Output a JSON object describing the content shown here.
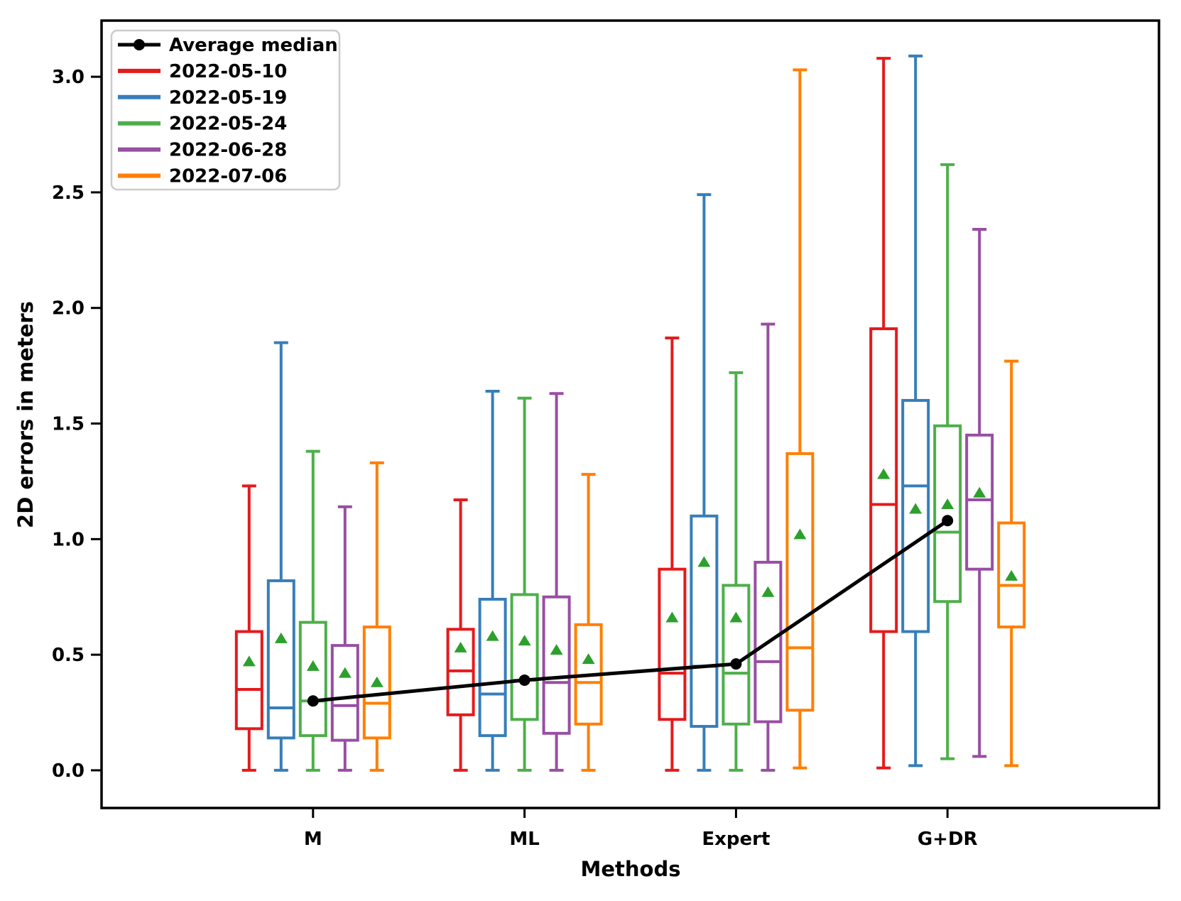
{
  "figure": {
    "background": "#ffffff",
    "plot_border_color": "#000000"
  },
  "chart_data": {
    "type": "boxplot",
    "title": "",
    "xlabel": "Methods",
    "ylabel": "2D errors in meters",
    "categories": [
      "M",
      "ML",
      "Expert",
      "G+DR"
    ],
    "y_ticks": [
      0.0,
      0.5,
      1.0,
      1.5,
      2.0,
      2.5,
      3.0
    ],
    "y_tick_labels": [
      "0.0",
      "0.5",
      "1.0",
      "1.5",
      "2.0",
      "2.5",
      "3.0"
    ],
    "ylim": [
      -0.163,
      3.243
    ],
    "grid": false,
    "legend_position": "upper-left",
    "mean_marker": {
      "shape": "triangle-up",
      "color": "#2ca02c"
    },
    "average_median": {
      "label": "Average median",
      "color": "#000000",
      "values": [
        0.3,
        0.39,
        0.46,
        1.08
      ]
    },
    "series": [
      {
        "name": "2022-05-10",
        "color": "#e41a1c",
        "boxes": [
          {
            "whislo": 0.0,
            "q1": 0.18,
            "med": 0.35,
            "q3": 0.6,
            "whishi": 1.23,
            "mean": 0.47
          },
          {
            "whislo": 0.0,
            "q1": 0.24,
            "med": 0.43,
            "q3": 0.61,
            "whishi": 1.17,
            "mean": 0.53
          },
          {
            "whislo": 0.0,
            "q1": 0.22,
            "med": 0.42,
            "q3": 0.87,
            "whishi": 1.87,
            "mean": 0.66
          },
          {
            "whislo": 0.01,
            "q1": 0.6,
            "med": 1.15,
            "q3": 1.91,
            "whishi": 3.08,
            "mean": 1.28
          }
        ]
      },
      {
        "name": "2022-05-19",
        "color": "#377eb8",
        "boxes": [
          {
            "whislo": 0.0,
            "q1": 0.14,
            "med": 0.27,
            "q3": 0.82,
            "whishi": 1.85,
            "mean": 0.57
          },
          {
            "whislo": 0.0,
            "q1": 0.15,
            "med": 0.33,
            "q3": 0.74,
            "whishi": 1.64,
            "mean": 0.58
          },
          {
            "whislo": 0.0,
            "q1": 0.19,
            "med": 0.45,
            "q3": 1.1,
            "whishi": 2.49,
            "mean": 0.9
          },
          {
            "whislo": 0.02,
            "q1": 0.6,
            "med": 1.23,
            "q3": 1.6,
            "whishi": 3.09,
            "mean": 1.13
          }
        ]
      },
      {
        "name": "2022-05-24",
        "color": "#4daf4a",
        "boxes": [
          {
            "whislo": 0.0,
            "q1": 0.15,
            "med": 0.3,
            "q3": 0.64,
            "whishi": 1.38,
            "mean": 0.45
          },
          {
            "whislo": 0.0,
            "q1": 0.22,
            "med": 0.39,
            "q3": 0.76,
            "whishi": 1.61,
            "mean": 0.56
          },
          {
            "whislo": 0.0,
            "q1": 0.2,
            "med": 0.42,
            "q3": 0.8,
            "whishi": 1.72,
            "mean": 0.66
          },
          {
            "whislo": 0.05,
            "q1": 0.73,
            "med": 1.03,
            "q3": 1.49,
            "whishi": 2.62,
            "mean": 1.15
          }
        ]
      },
      {
        "name": "2022-06-28",
        "color": "#984ea3",
        "boxes": [
          {
            "whislo": 0.0,
            "q1": 0.13,
            "med": 0.28,
            "q3": 0.54,
            "whishi": 1.14,
            "mean": 0.42
          },
          {
            "whislo": 0.0,
            "q1": 0.16,
            "med": 0.38,
            "q3": 0.75,
            "whishi": 1.63,
            "mean": 0.52
          },
          {
            "whislo": 0.0,
            "q1": 0.21,
            "med": 0.47,
            "q3": 0.9,
            "whishi": 1.93,
            "mean": 0.77
          },
          {
            "whislo": 0.06,
            "q1": 0.87,
            "med": 1.17,
            "q3": 1.45,
            "whishi": 2.34,
            "mean": 1.2
          }
        ]
      },
      {
        "name": "2022-07-06",
        "color": "#ff7f00",
        "boxes": [
          {
            "whislo": 0.0,
            "q1": 0.14,
            "med": 0.29,
            "q3": 0.62,
            "whishi": 1.33,
            "mean": 0.38
          },
          {
            "whislo": 0.0,
            "q1": 0.2,
            "med": 0.38,
            "q3": 0.63,
            "whishi": 1.28,
            "mean": 0.48
          },
          {
            "whislo": 0.01,
            "q1": 0.26,
            "med": 0.53,
            "q3": 1.37,
            "whishi": 3.03,
            "mean": 1.02
          },
          {
            "whislo": 0.02,
            "q1": 0.62,
            "med": 0.8,
            "q3": 1.07,
            "whishi": 1.77,
            "mean": 0.84
          }
        ]
      }
    ],
    "legend_items": [
      "Average median",
      "2022-05-10",
      "2022-05-19",
      "2022-05-24",
      "2022-06-28",
      "2022-07-06"
    ]
  }
}
